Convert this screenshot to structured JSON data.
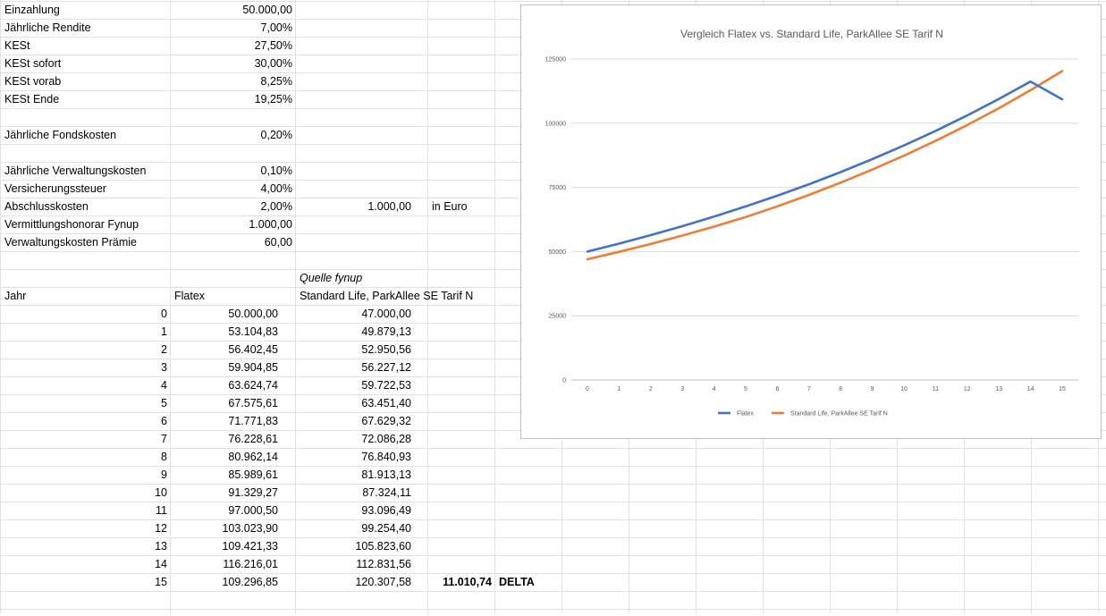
{
  "params": [
    {
      "label": "Einzahlung",
      "value": "50.000,00"
    },
    {
      "label": "Jährliche Rendite",
      "value": "7,00%"
    },
    {
      "label": "KESt",
      "value": "27,50%"
    },
    {
      "label": "KESt sofort",
      "value": "30,00%"
    },
    {
      "label": "KESt vorab",
      "value": "8,25%"
    },
    {
      "label": "KESt Ende",
      "value": "19,25%"
    },
    {
      "label": "Jährliche Fondskosten",
      "value": "0,20%"
    },
    {
      "label": "Jährliche Verwaltungskosten",
      "value": "0,10%"
    },
    {
      "label": "Versicherungssteuer",
      "value": "4,00%"
    },
    {
      "label": "Abschlusskosten",
      "value": "2,00%"
    },
    {
      "label": "Vermittlungshonorar Fynup",
      "value": "1.000,00"
    },
    {
      "label": "Verwaltungskosten Prämie",
      "value": "60,00"
    }
  ],
  "abschluss_euro": {
    "amount": "1.000,00",
    "unit": "in Euro"
  },
  "table": {
    "source_note": "Quelle fynup",
    "headers": {
      "year": "Jahr",
      "flatex": "Flatex",
      "standard": "Standard Life, ParkAllee SE Tarif N"
    },
    "rows": [
      {
        "year": "0",
        "flatex": "50.000,00",
        "standard": "47.000,00"
      },
      {
        "year": "1",
        "flatex": "53.104,83",
        "standard": "49.879,13"
      },
      {
        "year": "2",
        "flatex": "56.402,45",
        "standard": "52.950,56"
      },
      {
        "year": "3",
        "flatex": "59.904,85",
        "standard": "56.227,12"
      },
      {
        "year": "4",
        "flatex": "63.624,74",
        "standard": "59.722,53"
      },
      {
        "year": "5",
        "flatex": "67.575,61",
        "standard": "63.451,40"
      },
      {
        "year": "6",
        "flatex": "71.771,83",
        "standard": "67.629,32"
      },
      {
        "year": "7",
        "flatex": "76.228,61",
        "standard": "72.086,28"
      },
      {
        "year": "8",
        "flatex": "80.962,14",
        "standard": "76.840,93"
      },
      {
        "year": "9",
        "flatex": "85.989,61",
        "standard": "81.913,13"
      },
      {
        "year": "10",
        "flatex": "91.329,27",
        "standard": "87.324,11"
      },
      {
        "year": "11",
        "flatex": "97.000,50",
        "standard": "93.096,49"
      },
      {
        "year": "12",
        "flatex": "103.023,90",
        "standard": "99.254,40"
      },
      {
        "year": "13",
        "flatex": "109.421,33",
        "standard": "105.823,60"
      },
      {
        "year": "14",
        "flatex": "116.216,01",
        "standard": "112.831,56"
      },
      {
        "year": "15",
        "flatex": "109.296,85",
        "standard": "120.307,58"
      }
    ],
    "delta": {
      "value": "11.010,74",
      "label": "DELTA"
    }
  },
  "chart_data": {
    "type": "line",
    "title": "Vergleich Flatex vs. Standard Life, ParkAllee SE Tarif N",
    "x": [
      0,
      1,
      2,
      3,
      4,
      5,
      6,
      7,
      8,
      9,
      10,
      11,
      12,
      13,
      14,
      15
    ],
    "x_tick_labels": [
      "0",
      "1",
      "2",
      "3",
      "4",
      "5",
      "6",
      "7",
      "8",
      "9",
      "10",
      "11",
      "12",
      "13",
      "14",
      "15"
    ],
    "y_tick_labels": [
      "0",
      "25000",
      "50000",
      "75000",
      "100000",
      "125000"
    ],
    "y_ticks": [
      0,
      25000,
      50000,
      75000,
      100000,
      125000
    ],
    "ylim": [
      0,
      125000
    ],
    "grid": true,
    "legend_position": "bottom",
    "series": [
      {
        "name": "Flatex",
        "color": "#4472c4",
        "values": [
          50000.0,
          53104.83,
          56402.45,
          59904.85,
          63624.74,
          67575.61,
          71771.83,
          76228.61,
          80962.14,
          85989.61,
          91329.27,
          97000.5,
          103023.9,
          109421.33,
          116216.01,
          109296.85
        ]
      },
      {
        "name": "Standard Life, ParkAllee SE Tarif N",
        "color": "#ed7d31",
        "values": [
          47000.0,
          49879.13,
          52950.56,
          56227.12,
          59722.53,
          63451.4,
          67629.32,
          72086.28,
          76840.93,
          81913.13,
          87324.11,
          93096.49,
          99254.4,
          105823.6,
          112831.56,
          120307.58
        ]
      }
    ]
  }
}
